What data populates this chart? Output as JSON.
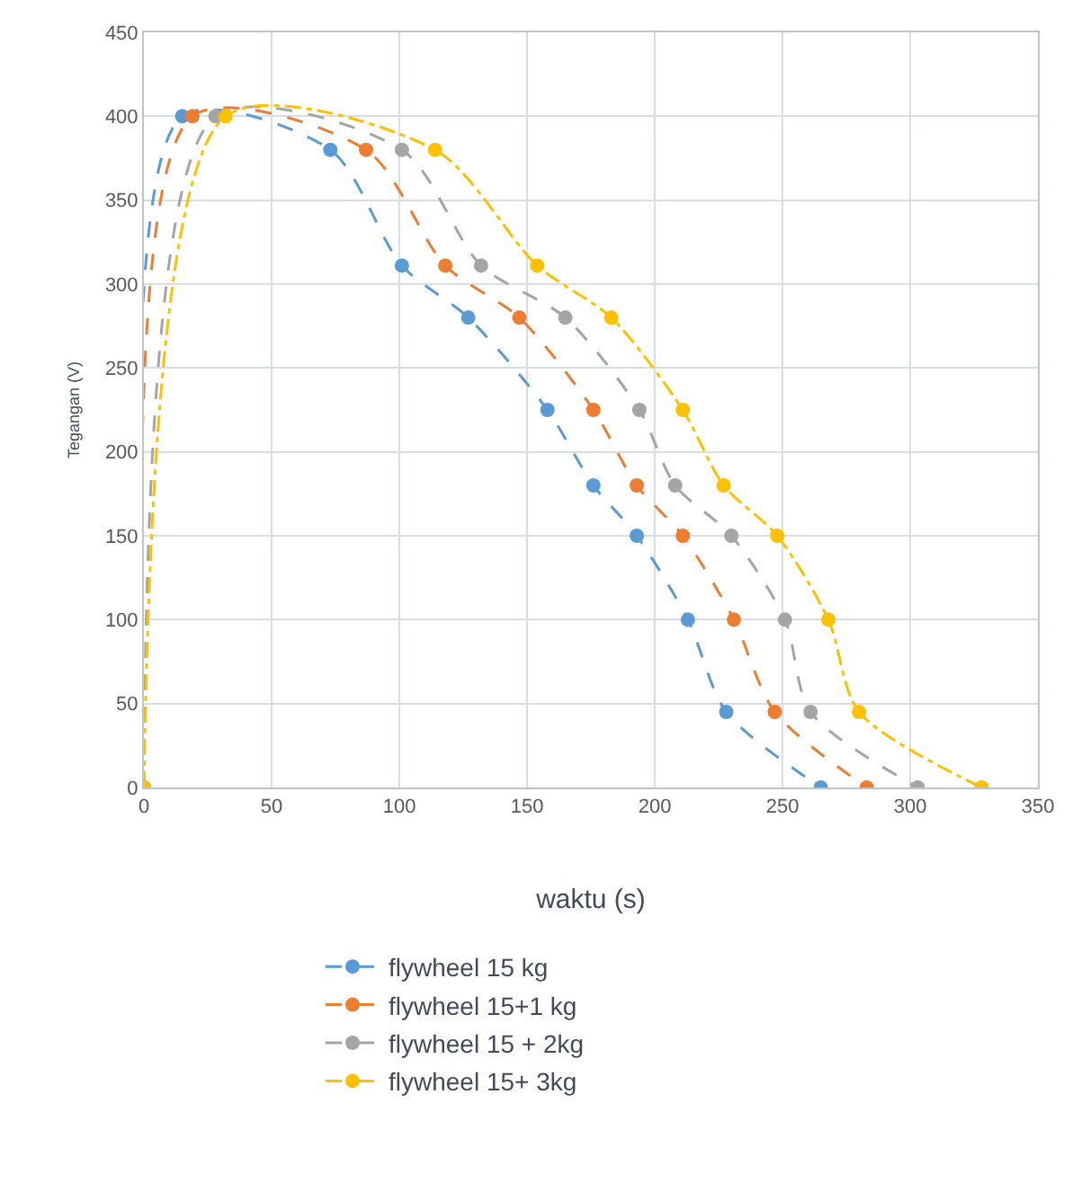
{
  "chart_data": {
    "type": "line",
    "xlabel": "waktu (s)",
    "ylabel": "Tegangan (V)",
    "xlim": [
      0,
      350
    ],
    "xticks": [
      0,
      50,
      100,
      150,
      200,
      250,
      300,
      350
    ],
    "ylim": [
      0,
      450
    ],
    "yticks": [
      0,
      50,
      100,
      150,
      200,
      250,
      300,
      350,
      400,
      450
    ],
    "grid": true,
    "legend": "bottom",
    "marker": "circle",
    "series": [
      {
        "name": "flywheel 15 kg",
        "color": "#5b9bd5",
        "line_style": "dashed",
        "x": [
          0,
          15,
          73,
          101,
          127,
          158,
          176,
          193,
          213,
          228,
          265
        ],
        "values": [
          0,
          400,
          380,
          311,
          280,
          225,
          180,
          150,
          100,
          45,
          0
        ]
      },
      {
        "name": "flywheel 15+1 kg",
        "color": "#ed7d31",
        "line_style": "dashed",
        "x": [
          0,
          19,
          87,
          118,
          147,
          176,
          193,
          211,
          231,
          247,
          283
        ],
        "values": [
          0,
          400,
          380,
          311,
          280,
          225,
          180,
          150,
          100,
          45,
          0
        ]
      },
      {
        "name": "flywheel 15 + 2kg",
        "color": "#a5a5a5",
        "line_style": "dashed",
        "x": [
          0,
          28,
          101,
          132,
          165,
          194,
          208,
          230,
          251,
          261,
          303
        ],
        "values": [
          0,
          400,
          380,
          311,
          280,
          225,
          180,
          150,
          100,
          45,
          0
        ]
      },
      {
        "name": "flywheel 15+ 3kg",
        "color": "#ffc000",
        "line_style": "dashdot",
        "x": [
          0,
          32,
          114,
          154,
          183,
          211,
          227,
          248,
          268,
          280,
          328
        ],
        "values": [
          0,
          400,
          380,
          311,
          280,
          225,
          180,
          150,
          100,
          45,
          0
        ]
      }
    ]
  }
}
